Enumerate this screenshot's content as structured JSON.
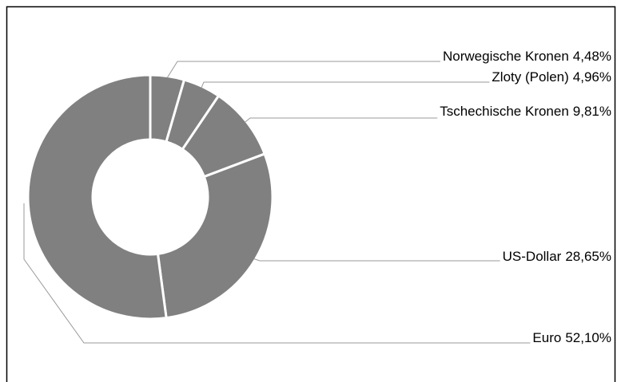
{
  "chart_data": {
    "type": "pie",
    "donut": true,
    "categories": [
      "Norwegische Kronen",
      "Zloty (Polen)",
      "Tschechische Kronen",
      "US-Dollar",
      "Euro"
    ],
    "values": [
      4.48,
      4.96,
      9.81,
      28.65,
      52.1
    ],
    "value_labels": [
      "4,48%",
      "4,96%",
      "9,81%",
      "28,65%",
      "52,10%"
    ],
    "color": "#808080"
  }
}
